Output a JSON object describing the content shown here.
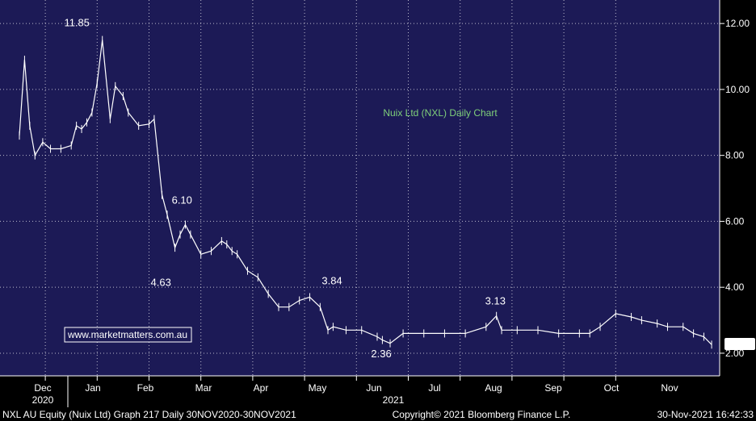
{
  "colors": {
    "background": "#1c1a56",
    "outer": "#000000",
    "grid": "#ffffff",
    "price": "#ffffff",
    "title": "#7fd07a",
    "watermark_text": "#ffffff",
    "watermark_border": "#ffffff",
    "current_badge_bg": "#ffffff",
    "current_badge_text": "#000000"
  },
  "chart_data": {
    "type": "line",
    "title": "Nuix Ltd (NXL) Daily Chart",
    "y_axis_side": "right",
    "ylim": [
      1.5,
      12.7
    ],
    "yticks": [
      "2.00",
      "4.00",
      "6.00",
      "8.00",
      "10.00",
      "12.00"
    ],
    "ytick_values": [
      2,
      4,
      6,
      8,
      10,
      12
    ],
    "x_months": [
      "Dec",
      "Jan",
      "Feb",
      "Mar",
      "Apr",
      "May",
      "Jun",
      "Jul",
      "Aug",
      "Sep",
      "Oct",
      "Nov"
    ],
    "x_years": [
      "2020",
      "2021"
    ],
    "grid": true,
    "current_value": "2.26",
    "annotations": [
      "11.85",
      "6.10",
      "4.63",
      "3.84",
      "2.36",
      "3.13"
    ],
    "annotation_values": [
      11.85,
      6.1,
      4.63,
      3.84,
      2.36,
      3.13
    ],
    "annotation_months": [
      1.3,
      3.0,
      2.75,
      5.8,
      7.0,
      9.2
    ],
    "series": [
      {
        "x": [
          0.0,
          0.1,
          0.2,
          0.3,
          0.45,
          0.6,
          0.8,
          1.0,
          1.1,
          1.2,
          1.3,
          1.4,
          1.5,
          1.6,
          1.75,
          1.85,
          2.0,
          2.1,
          2.3,
          2.5,
          2.6,
          2.75,
          2.85,
          3.0,
          3.1,
          3.2,
          3.3,
          3.5,
          3.7,
          3.9,
          4.0,
          4.1,
          4.2,
          4.4,
          4.6,
          4.8,
          5.0,
          5.2,
          5.4,
          5.6,
          5.8,
          5.95,
          6.05,
          6.3,
          6.6,
          6.9,
          7.0,
          7.15,
          7.4,
          7.8,
          8.2,
          8.6,
          9.0,
          9.2,
          9.3,
          9.6,
          10.0,
          10.4,
          10.8,
          11.0,
          11.2,
          11.5,
          11.8,
          12.0,
          12.3,
          12.5,
          12.8,
          13.0,
          13.2,
          13.35
        ],
        "values": [
          8.6,
          10.9,
          8.9,
          8.0,
          8.4,
          8.2,
          8.2,
          8.3,
          8.9,
          8.8,
          9.0,
          9.3,
          10.2,
          11.5,
          9.1,
          10.1,
          9.8,
          9.3,
          8.9,
          8.95,
          9.1,
          6.8,
          6.2,
          5.2,
          5.6,
          5.9,
          5.6,
          5.0,
          5.1,
          5.4,
          5.3,
          5.1,
          5.0,
          4.5,
          4.3,
          3.8,
          3.4,
          3.4,
          3.6,
          3.7,
          3.4,
          2.7,
          2.8,
          2.7,
          2.7,
          2.5,
          2.4,
          2.3,
          2.6,
          2.6,
          2.6,
          2.6,
          2.8,
          3.13,
          2.7,
          2.7,
          2.7,
          2.6,
          2.6,
          2.6,
          2.8,
          3.2,
          3.1,
          3.0,
          2.9,
          2.8,
          2.8,
          2.6,
          2.5,
          2.26
        ]
      }
    ]
  },
  "watermark": "www.marketmatters.com.au",
  "footer": {
    "left": "NXL AU Equity (Nuix Ltd) Graph 217  Daily 30NOV2020-30NOV2021",
    "center": "Copyright© 2021 Bloomberg Finance L.P.",
    "right": "30-Nov-2021 16:42:33"
  }
}
